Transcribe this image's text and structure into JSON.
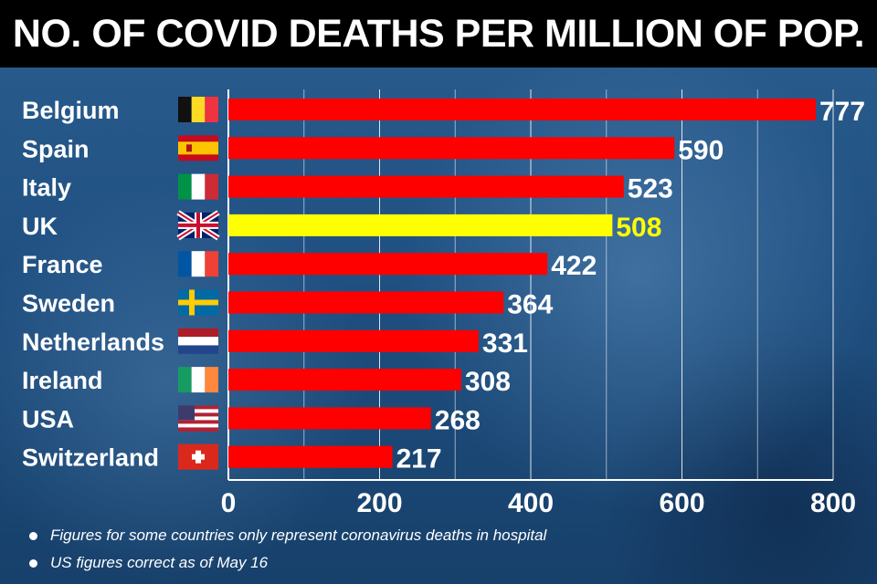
{
  "header": {
    "title": "NO. OF COVID DEATHS PER MILLION OF POP."
  },
  "chart_data": {
    "type": "bar",
    "orientation": "horizontal",
    "title": "NO. OF COVID DEATHS PER MILLION OF POP.",
    "categories": [
      "Belgium",
      "Spain",
      "Italy",
      "UK",
      "France",
      "Sweden",
      "Netherlands",
      "Ireland",
      "USA",
      "Switzerland"
    ],
    "values": [
      777,
      590,
      523,
      508,
      422,
      364,
      331,
      308,
      268,
      217
    ],
    "value_labels": [
      "777",
      "590",
      "523",
      "508",
      "422",
      "364",
      "331",
      "308",
      "268",
      "217"
    ],
    "highlight_category": "UK",
    "xlim": [
      0,
      800
    ],
    "xticks": [
      0,
      200,
      400,
      600,
      800
    ],
    "xtick_labels": [
      "0",
      "200",
      "400",
      "600",
      "800"
    ],
    "xlabel": "",
    "ylabel": "",
    "grid": true,
    "legend": "none",
    "colors": {
      "bar": "#ff0000",
      "highlight": "#ffff00",
      "value_label": "#ffffff",
      "highlight_label": "#ffff00"
    },
    "flags": [
      "flag-belgium-icon",
      "flag-spain-icon",
      "flag-italy-icon",
      "flag-uk-icon",
      "flag-france-icon",
      "flag-sweden-icon",
      "flag-netherlands-icon",
      "flag-ireland-icon",
      "flag-usa-icon",
      "flag-switzerland-icon"
    ]
  },
  "notes": [
    "Figures for some countries only represent coronavirus deaths in hospital",
    "US figures correct as of May 16"
  ]
}
